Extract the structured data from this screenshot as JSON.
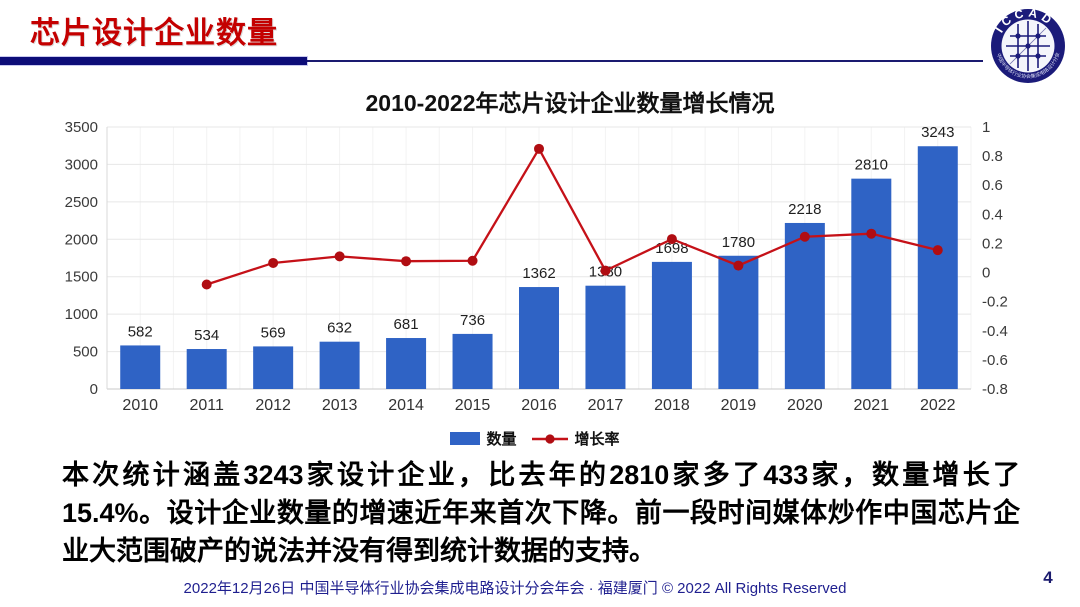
{
  "slide": {
    "title": "芯片设计企业数量",
    "page_number": "4",
    "footer": "2022年12月26日 中国半导体行业协会集成电路设计分会年会 · 福建厦门 © 2022 All Rights Reserved",
    "body_text": "本次统计涵盖3243家设计企业，比去年的2810家多了433家，数量增长了15.4%。设计企业数量的增速近年来首次下降。前一段时间媒体炒作中国芯片企业大范围破产的说法并没有得到统计数据的支持。"
  },
  "logo": {
    "text": "ICCAD",
    "ring_text": "中国半导体行业协会集成电路设计分会"
  },
  "colors": {
    "heading_red": "#c40000",
    "navy": "#0d0d78",
    "bar_blue": "#2f63c5",
    "line_red": "#c51118",
    "marker_red": "#b00d12",
    "footer_navy": "#1f1f8f"
  },
  "chart_data": {
    "type": "bar",
    "combo": "bar+line",
    "title": "2010-2022年芯片设计企业数量增长情况",
    "categories": [
      "2010",
      "2011",
      "2012",
      "2013",
      "2014",
      "2015",
      "2016",
      "2017",
      "2018",
      "2019",
      "2020",
      "2021",
      "2022"
    ],
    "series": [
      {
        "name": "数量",
        "type": "bar",
        "axis": "left",
        "values": [
          582,
          534,
          569,
          632,
          681,
          736,
          1362,
          1380,
          1698,
          1780,
          2218,
          2810,
          3243
        ],
        "color": "#2f63c5"
      },
      {
        "name": "增长率",
        "type": "line",
        "axis": "right",
        "values": [
          null,
          -0.082,
          0.066,
          0.111,
          0.078,
          0.081,
          0.85,
          0.013,
          0.23,
          0.048,
          0.246,
          0.267,
          0.154
        ],
        "color": "#c51118"
      }
    ],
    "left_axis": {
      "min": 0,
      "max": 3500,
      "step": 500
    },
    "right_axis": {
      "min": -0.8,
      "max": 1,
      "step": 0.2
    },
    "grid": true,
    "legend_position": "bottom",
    "xlabel": "",
    "ylabel": ""
  }
}
